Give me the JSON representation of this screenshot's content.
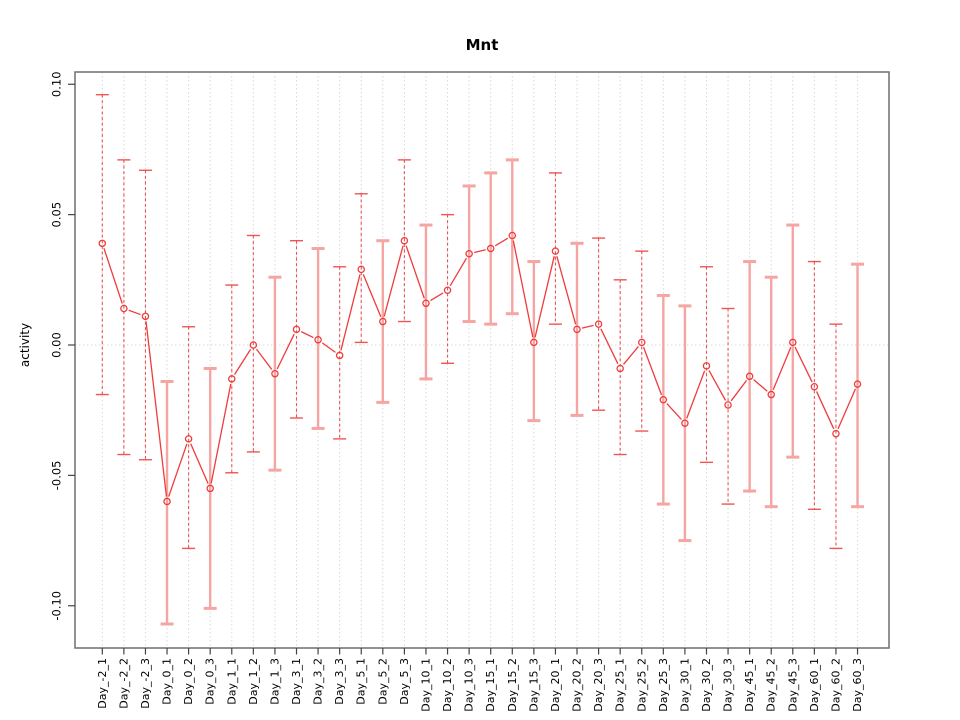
{
  "chart_data": {
    "type": "line",
    "title": "Mnt",
    "xlabel": "",
    "ylabel": "activity",
    "ylim": [
      -0.1162,
      0.1047
    ],
    "grid": "vertical-dotted-gridlines-and-dotted-zero-line",
    "legend": "none",
    "yticks": [
      0.1,
      0.05,
      0.0,
      -0.05,
      -0.1
    ],
    "ytick_labels": [
      "0.10",
      "0.05",
      "0.00",
      "-0.05",
      "-0.10"
    ],
    "categories": [
      "Day_-2_1",
      "Day_-2_2",
      "Day_-2_3",
      "Day_0_1",
      "Day_0_2",
      "Day_0_3",
      "Day_1_1",
      "Day_1_2",
      "Day_1_3",
      "Day_3_1",
      "Day_3_2",
      "Day_3_3",
      "Day_5_1",
      "Day_5_2",
      "Day_5_3",
      "Day_10_1",
      "Day_10_2",
      "Day_10_3",
      "Day_15_1",
      "Day_15_2",
      "Day_15_3",
      "Day_20_1",
      "Day_20_2",
      "Day_20_3",
      "Day_25_1",
      "Day_25_2",
      "Day_25_3",
      "Day_30_1",
      "Day_30_2",
      "Day_30_3",
      "Day_45_1",
      "Day_45_2",
      "Day_45_3",
      "Day_60_1",
      "Day_60_2",
      "Day_60_3"
    ],
    "series": [
      {
        "name": "activity",
        "marker": "open-circle",
        "values": [
          0.039,
          0.014,
          0.011,
          -0.06,
          -0.036,
          -0.055,
          -0.013,
          0.0,
          -0.011,
          0.006,
          0.002,
          -0.004,
          0.029,
          0.009,
          0.04,
          0.016,
          0.021,
          0.035,
          0.037,
          0.042,
          0.001,
          0.036,
          0.006,
          0.008,
          -0.009,
          0.001,
          -0.021,
          -0.03,
          -0.008,
          -0.023,
          -0.012,
          -0.019,
          0.001,
          -0.016,
          -0.034,
          -0.015
        ],
        "upper": [
          0.096,
          0.071,
          0.067,
          -0.014,
          0.007,
          -0.009,
          0.023,
          0.042,
          0.026,
          0.04,
          0.037,
          0.03,
          0.058,
          0.04,
          0.071,
          0.046,
          0.05,
          0.061,
          0.066,
          0.071,
          0.032,
          0.066,
          0.039,
          0.041,
          0.025,
          0.036,
          0.019,
          0.015,
          0.03,
          0.014,
          0.032,
          0.026,
          0.046,
          0.032,
          0.008,
          0.031
        ],
        "lower": [
          -0.019,
          -0.042,
          -0.044,
          -0.107,
          -0.078,
          -0.101,
          -0.049,
          -0.041,
          -0.048,
          -0.028,
          -0.032,
          -0.036,
          0.001,
          -0.022,
          0.009,
          -0.013,
          -0.007,
          0.009,
          0.008,
          0.012,
          -0.029,
          0.008,
          -0.027,
          -0.025,
          -0.042,
          -0.033,
          -0.061,
          -0.075,
          -0.045,
          -0.061,
          -0.056,
          -0.062,
          -0.043,
          -0.063,
          -0.078,
          -0.062
        ],
        "bar_styles": [
          "dashed",
          "dashed",
          "dashed",
          "solid",
          "dashed",
          "solid",
          "dashed",
          "dashed",
          "solid",
          "dashed",
          "solid",
          "dashed",
          "dashed",
          "solid",
          "dashed",
          "solid",
          "dashed",
          "solid",
          "solid",
          "solid",
          "solid",
          "dashed",
          "solid",
          "dashed",
          "dashed",
          "dashed",
          "solid",
          "solid",
          "dashed",
          "dashed",
          "solid",
          "solid",
          "solid",
          "dashed",
          "dashed",
          "solid"
        ]
      }
    ],
    "colors": {
      "line": "#ee3c3c",
      "marker": "#ee3c3c",
      "error_bar_dashed": "#ee4343",
      "error_bar_solid_pink": "#f5a5a2",
      "gridline": "#d9d9d9",
      "box": "#777777",
      "tick": "#444444",
      "text": "#000000",
      "background": "#ffffff"
    }
  }
}
